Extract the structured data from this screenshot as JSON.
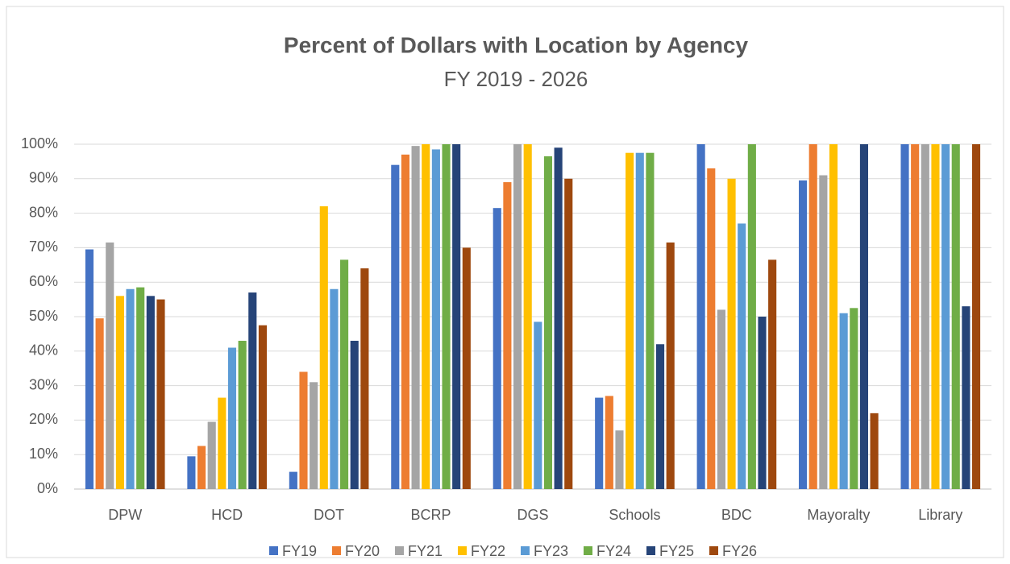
{
  "chart_data": {
    "type": "bar",
    "title": "Percent of Dollars with Location by Agency",
    "subtitle": "FY 2019 - 2026",
    "categories": [
      "DPW",
      "HCD",
      "DOT",
      "BCRP",
      "DGS",
      "Schools",
      "BDC",
      "Mayoralty",
      "Library"
    ],
    "series": [
      {
        "name": "FY19",
        "color": "#4472c4",
        "values": [
          69.5,
          9.5,
          5,
          94,
          81.5,
          26.5,
          100,
          89.5,
          100
        ]
      },
      {
        "name": "FY20",
        "color": "#ed7d31",
        "values": [
          49.5,
          12.5,
          34,
          97,
          89,
          27,
          93,
          100,
          100
        ]
      },
      {
        "name": "FY21",
        "color": "#a5a5a5",
        "values": [
          71.5,
          19.5,
          31,
          99.5,
          100,
          17,
          52,
          91,
          100
        ]
      },
      {
        "name": "FY22",
        "color": "#ffc000",
        "values": [
          56,
          26.5,
          82,
          100,
          100,
          97.5,
          90,
          100,
          100
        ]
      },
      {
        "name": "FY23",
        "color": "#5b9bd5",
        "values": [
          58,
          41,
          58,
          98.5,
          48.5,
          97.5,
          77,
          51,
          100
        ]
      },
      {
        "name": "FY24",
        "color": "#70ad47",
        "values": [
          58.5,
          43,
          66.5,
          100,
          96.5,
          97.5,
          100,
          52.5,
          100
        ]
      },
      {
        "name": "FY25",
        "color": "#264478",
        "values": [
          56,
          57,
          43,
          100,
          99,
          42,
          50,
          100,
          53
        ]
      },
      {
        "name": "FY26",
        "color": "#9e480e",
        "values": [
          55,
          47.5,
          64,
          70,
          90,
          71.5,
          66.5,
          22,
          100
        ]
      }
    ],
    "ylim": [
      0,
      100
    ],
    "yticks": [
      {
        "value": 0,
        "label": "0%"
      },
      {
        "value": 10,
        "label": "10%"
      },
      {
        "value": 20,
        "label": "20%"
      },
      {
        "value": 30,
        "label": "30%"
      },
      {
        "value": 40,
        "label": "40%"
      },
      {
        "value": 50,
        "label": "50%"
      },
      {
        "value": 60,
        "label": "60%"
      },
      {
        "value": 70,
        "label": "70%"
      },
      {
        "value": 80,
        "label": "80%"
      },
      {
        "value": 90,
        "label": "90%"
      },
      {
        "value": 100,
        "label": "100%"
      }
    ],
    "grid": true,
    "legend": "bottom"
  }
}
